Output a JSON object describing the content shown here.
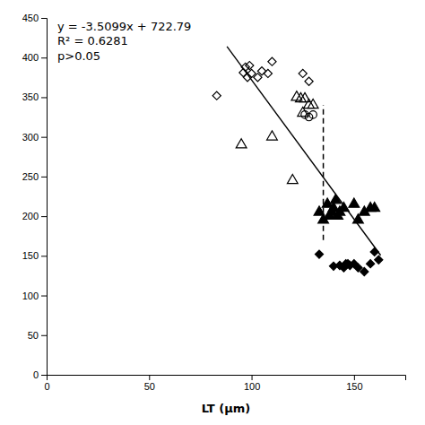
{
  "chart_data": {
    "type": "scatter",
    "xlabel": "LT (μm)",
    "xlim": [
      0,
      175
    ],
    "ylim": [
      0,
      450
    ],
    "xticks": [
      0,
      50,
      100,
      150
    ],
    "yticks": [
      0,
      50,
      100,
      150,
      200,
      250,
      300,
      350,
      400,
      450
    ],
    "annotations": [
      "y = -3.5099x + 722.79",
      "R² = 0.6281",
      "p>0.05"
    ],
    "series": [
      {
        "type": "line",
        "color": "black",
        "line_style": "solid",
        "x": [
          88,
          163
        ],
        "values": [
          413.9188,
          150.6763
        ]
      },
      {
        "type": "line",
        "color": "black",
        "line_style": "dashed",
        "x": [
          135,
          135
        ],
        "values": [
          170,
          340
        ]
      },
      {
        "type": "scatter",
        "color": "black",
        "marker": "diamond-open",
        "x": [
          83,
          96,
          97,
          98,
          99,
          100,
          103,
          105,
          108,
          110,
          125,
          128
        ],
        "values": [
          352,
          381,
          388,
          375,
          390,
          380,
          375,
          383,
          380,
          395,
          380,
          370
        ]
      },
      {
        "type": "scatter",
        "color": "black",
        "marker": "triangle-open",
        "x": [
          95,
          110,
          120,
          122,
          124,
          125,
          126,
          128,
          130
        ],
        "values": [
          290,
          300,
          245,
          350,
          348,
          330,
          348,
          340,
          340
        ]
      },
      {
        "type": "scatter",
        "color": "black",
        "marker": "circle-open",
        "x": [
          126,
          128,
          130
        ],
        "values": [
          328,
          325,
          328
        ]
      },
      {
        "type": "scatter",
        "color": "black",
        "marker": "triangle",
        "x": [
          133,
          135,
          137,
          138,
          139,
          140,
          141,
          142,
          143,
          145,
          150,
          152,
          155,
          158,
          160
        ],
        "values": [
          205,
          195,
          215,
          200,
          205,
          210,
          220,
          200,
          205,
          210,
          215,
          195,
          205,
          210,
          210
        ]
      },
      {
        "type": "scatter",
        "color": "black",
        "marker": "diamond",
        "x": [
          133,
          140,
          143,
          145,
          146,
          147,
          148,
          150,
          152,
          155,
          158,
          160,
          162
        ],
        "values": [
          152,
          137,
          138,
          135,
          140,
          140,
          138,
          140,
          135,
          130,
          140,
          155,
          145
        ]
      }
    ]
  }
}
